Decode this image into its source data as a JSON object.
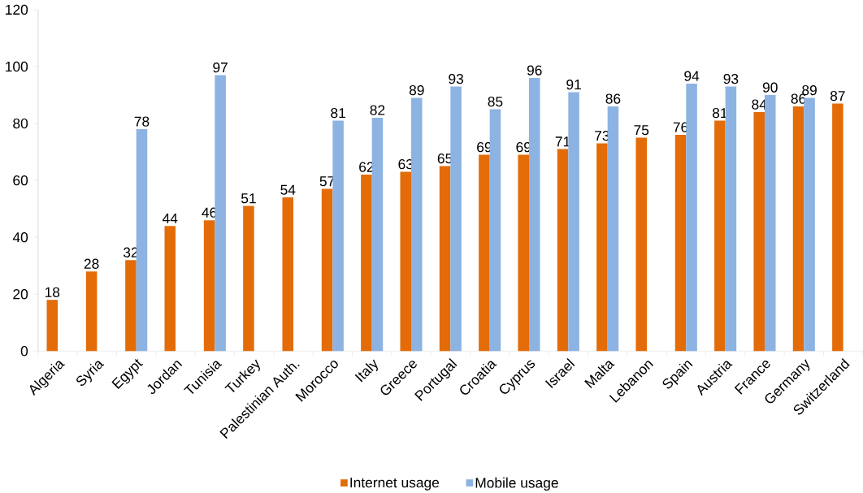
{
  "chart_data": {
    "type": "bar",
    "categories": [
      "Algeria",
      "Syria",
      "Egypt",
      "Jordan",
      "Tunisia",
      "Turkey",
      "Palestinian Auth.",
      "Morocco",
      "Italy",
      "Greece",
      "Portugal",
      "Croatia",
      "Cyprus",
      "Israel",
      "Malta",
      "Lebanon",
      "Spain",
      "Austria",
      "France",
      "Germany",
      "Switzerland"
    ],
    "series": [
      {
        "name": "Internet usage",
        "color": "#e36c09",
        "values": [
          18,
          28,
          32,
          44,
          46,
          51,
          54,
          57,
          62,
          63,
          65,
          69,
          69,
          71,
          73,
          75,
          76,
          81,
          84,
          86,
          87
        ]
      },
      {
        "name": "Mobile usage",
        "color": "#8db3e2",
        "values": [
          null,
          null,
          78,
          null,
          97,
          null,
          null,
          81,
          82,
          89,
          93,
          85,
          96,
          91,
          86,
          null,
          94,
          93,
          90,
          89,
          null
        ]
      }
    ],
    "ylim": [
      0,
      120
    ],
    "yticks": [
      0,
      20,
      40,
      60,
      80,
      100,
      120
    ],
    "data_labels": true,
    "grid": false,
    "legend": "bottom"
  }
}
